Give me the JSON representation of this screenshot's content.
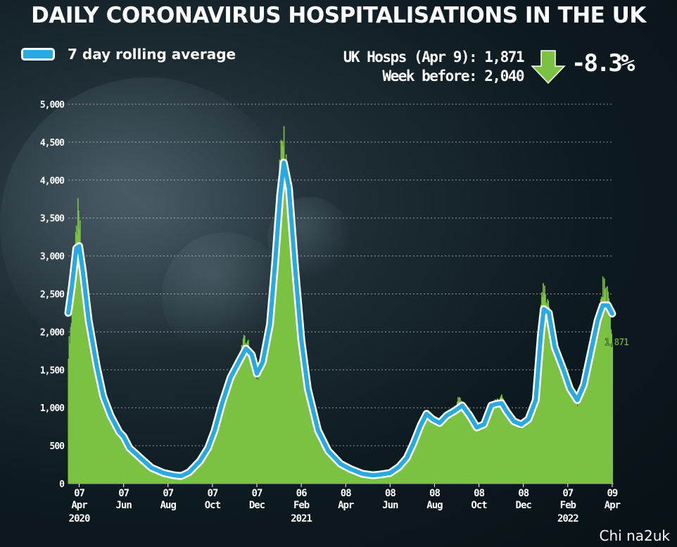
{
  "title": "DAILY CORONAVIRUS HOSPITALISATIONS IN THE UK",
  "legend": {
    "label": "7 day rolling average",
    "swatch_color": "#29a9e1"
  },
  "stats": {
    "latest": "UK Hosps (Apr 9): 1,871",
    "previous": "Week before: 2,040",
    "change": "-8.3%",
    "arrow_icon": "down-arrow-icon",
    "arrow_color": "#7cc242"
  },
  "watermark": "Chi na2uk",
  "chart_data": {
    "type": "bar",
    "title": "DAILY CORONAVIRUS HOSPITALISATIONS IN THE UK",
    "bar_color": "#7cc242",
    "line_color": "#29a9e1",
    "ylim": [
      0,
      5000
    ],
    "yticks": [
      "0",
      "500",
      "1,000",
      "1,500",
      "2,000",
      "2,500",
      "3,000",
      "3,500",
      "4,000",
      "4,500",
      "5,000"
    ],
    "ytick_values": [
      0,
      500,
      1000,
      1500,
      2000,
      2500,
      3000,
      3500,
      4000,
      4500,
      5000
    ],
    "xlim": [
      "2020-03-23",
      "2022-04-11"
    ],
    "xticks": [
      {
        "date": "2020-04-07",
        "day": "07",
        "month": "Apr",
        "year": "2020"
      },
      {
        "date": "2020-06-07",
        "day": "07",
        "month": "Jun",
        "year": ""
      },
      {
        "date": "2020-08-07",
        "day": "07",
        "month": "Aug",
        "year": ""
      },
      {
        "date": "2020-10-07",
        "day": "07",
        "month": "Oct",
        "year": ""
      },
      {
        "date": "2020-12-07",
        "day": "07",
        "month": "Dec",
        "year": ""
      },
      {
        "date": "2021-02-06",
        "day": "06",
        "month": "Feb",
        "year": "2021"
      },
      {
        "date": "2021-04-08",
        "day": "08",
        "month": "Apr",
        "year": ""
      },
      {
        "date": "2021-06-08",
        "day": "08",
        "month": "Jun",
        "year": ""
      },
      {
        "date": "2021-08-08",
        "day": "08",
        "month": "Aug",
        "year": ""
      },
      {
        "date": "2021-10-08",
        "day": "08",
        "month": "Oct",
        "year": ""
      },
      {
        "date": "2021-12-08",
        "day": "08",
        "month": "Dec",
        "year": ""
      },
      {
        "date": "2022-02-07",
        "day": "07",
        "month": "Feb",
        "year": "2022"
      },
      {
        "date": "2022-04-09",
        "day": "09",
        "month": "Apr",
        "year": ""
      }
    ],
    "series": [
      {
        "name": "7 day rolling average",
        "points": [
          [
            "2020-03-23",
            2250
          ],
          [
            "2020-03-28",
            2600
          ],
          [
            "2020-04-03",
            3100
          ],
          [
            "2020-04-07",
            3130
          ],
          [
            "2020-04-12",
            2800
          ],
          [
            "2020-04-20",
            2150
          ],
          [
            "2020-05-01",
            1550
          ],
          [
            "2020-05-10",
            1150
          ],
          [
            "2020-05-20",
            900
          ],
          [
            "2020-06-01",
            680
          ],
          [
            "2020-06-07",
            620
          ],
          [
            "2020-06-15",
            470
          ],
          [
            "2020-07-01",
            330
          ],
          [
            "2020-07-15",
            210
          ],
          [
            "2020-08-01",
            140
          ],
          [
            "2020-08-15",
            110
          ],
          [
            "2020-08-25",
            100
          ],
          [
            "2020-09-05",
            150
          ],
          [
            "2020-09-20",
            300
          ],
          [
            "2020-10-01",
            470
          ],
          [
            "2020-10-10",
            700
          ],
          [
            "2020-10-20",
            1050
          ],
          [
            "2020-11-01",
            1400
          ],
          [
            "2020-11-12",
            1600
          ],
          [
            "2020-11-22",
            1780
          ],
          [
            "2020-11-30",
            1700
          ],
          [
            "2020-12-07",
            1450
          ],
          [
            "2020-12-15",
            1600
          ],
          [
            "2020-12-25",
            2100
          ],
          [
            "2021-01-01",
            2900
          ],
          [
            "2021-01-08",
            3800
          ],
          [
            "2021-01-13",
            4230
          ],
          [
            "2021-01-20",
            3900
          ],
          [
            "2021-01-28",
            2900
          ],
          [
            "2021-02-06",
            1900
          ],
          [
            "2021-02-15",
            1250
          ],
          [
            "2021-03-01",
            700
          ],
          [
            "2021-03-15",
            430
          ],
          [
            "2021-04-01",
            260
          ],
          [
            "2021-04-15",
            190
          ],
          [
            "2021-05-01",
            130
          ],
          [
            "2021-05-15",
            110
          ],
          [
            "2021-05-25",
            120
          ],
          [
            "2021-06-08",
            140
          ],
          [
            "2021-06-20",
            220
          ],
          [
            "2021-07-01",
            340
          ],
          [
            "2021-07-10",
            530
          ],
          [
            "2021-07-20",
            770
          ],
          [
            "2021-07-28",
            920
          ],
          [
            "2021-08-05",
            850
          ],
          [
            "2021-08-15",
            800
          ],
          [
            "2021-08-25",
            900
          ],
          [
            "2021-09-05",
            960
          ],
          [
            "2021-09-15",
            1030
          ],
          [
            "2021-09-25",
            900
          ],
          [
            "2021-10-05",
            740
          ],
          [
            "2021-10-15",
            780
          ],
          [
            "2021-10-25",
            1030
          ],
          [
            "2021-11-01",
            1050
          ],
          [
            "2021-11-08",
            1060
          ],
          [
            "2021-11-15",
            950
          ],
          [
            "2021-11-25",
            820
          ],
          [
            "2021-12-05",
            780
          ],
          [
            "2021-12-15",
            850
          ],
          [
            "2021-12-25",
            1100
          ],
          [
            "2022-01-01",
            1950
          ],
          [
            "2022-01-05",
            2300
          ],
          [
            "2022-01-12",
            2250
          ],
          [
            "2022-01-20",
            1800
          ],
          [
            "2022-02-01",
            1500
          ],
          [
            "2022-02-10",
            1250
          ],
          [
            "2022-02-20",
            1100
          ],
          [
            "2022-03-01",
            1300
          ],
          [
            "2022-03-10",
            1700
          ],
          [
            "2022-03-20",
            2150
          ],
          [
            "2022-03-27",
            2350
          ],
          [
            "2022-04-03",
            2350
          ],
          [
            "2022-04-09",
            2240
          ]
        ]
      },
      {
        "name": "Daily hospitalisations",
        "note_label": "1,871",
        "points": [
          [
            "2020-03-23",
            1750
          ],
          [
            "2020-03-28",
            2250
          ],
          [
            "2020-04-01",
            3000
          ],
          [
            "2020-04-05",
            3550
          ],
          [
            "2020-04-08",
            3300
          ],
          [
            "2020-04-12",
            2700
          ],
          [
            "2020-04-20",
            2150
          ],
          [
            "2020-05-01",
            1500
          ],
          [
            "2020-05-10",
            1100
          ],
          [
            "2020-05-20",
            870
          ],
          [
            "2020-06-01",
            660
          ],
          [
            "2020-06-07",
            600
          ],
          [
            "2020-06-15",
            450
          ],
          [
            "2020-07-01",
            310
          ],
          [
            "2020-07-15",
            200
          ],
          [
            "2020-08-01",
            130
          ],
          [
            "2020-08-15",
            105
          ],
          [
            "2020-08-25",
            95
          ],
          [
            "2020-09-05",
            140
          ],
          [
            "2020-09-20",
            290
          ],
          [
            "2020-10-01",
            450
          ],
          [
            "2020-10-10",
            680
          ],
          [
            "2020-10-20",
            1020
          ],
          [
            "2020-11-01",
            1380
          ],
          [
            "2020-11-12",
            1650
          ],
          [
            "2020-11-20",
            1950
          ],
          [
            "2020-11-30",
            1650
          ],
          [
            "2020-12-07",
            1400
          ],
          [
            "2020-12-15",
            1580
          ],
          [
            "2020-12-25",
            2050
          ],
          [
            "2021-01-01",
            2900
          ],
          [
            "2021-01-06",
            4100
          ],
          [
            "2021-01-12",
            4550
          ],
          [
            "2021-01-18",
            3950
          ],
          [
            "2021-01-28",
            2850
          ],
          [
            "2021-02-06",
            1850
          ],
          [
            "2021-02-15",
            1200
          ],
          [
            "2021-03-01",
            680
          ],
          [
            "2021-03-15",
            410
          ],
          [
            "2021-04-01",
            250
          ],
          [
            "2021-04-15",
            180
          ],
          [
            "2021-05-01",
            125
          ],
          [
            "2021-05-15",
            105
          ],
          [
            "2021-05-25",
            115
          ],
          [
            "2021-06-08",
            135
          ],
          [
            "2021-06-20",
            215
          ],
          [
            "2021-07-01",
            330
          ],
          [
            "2021-07-10",
            520
          ],
          [
            "2021-07-20",
            760
          ],
          [
            "2021-07-28",
            950
          ],
          [
            "2021-08-05",
            830
          ],
          [
            "2021-08-15",
            790
          ],
          [
            "2021-08-25",
            890
          ],
          [
            "2021-09-05",
            980
          ],
          [
            "2021-09-12",
            1150
          ],
          [
            "2021-09-25",
            880
          ],
          [
            "2021-10-05",
            720
          ],
          [
            "2021-10-15",
            770
          ],
          [
            "2021-10-25",
            1080
          ],
          [
            "2021-11-01",
            1050
          ],
          [
            "2021-11-08",
            1120
          ],
          [
            "2021-11-15",
            930
          ],
          [
            "2021-11-25",
            800
          ],
          [
            "2021-12-05",
            760
          ],
          [
            "2021-12-15",
            870
          ],
          [
            "2021-12-25",
            1150
          ],
          [
            "2021-12-31",
            2200
          ],
          [
            "2022-01-03",
            2600
          ],
          [
            "2022-01-08",
            2400
          ],
          [
            "2022-01-15",
            2150
          ],
          [
            "2022-01-22",
            1750
          ],
          [
            "2022-02-01",
            1450
          ],
          [
            "2022-02-10",
            1200
          ],
          [
            "2022-02-20",
            1050
          ],
          [
            "2022-03-01",
            1280
          ],
          [
            "2022-03-10",
            1700
          ],
          [
            "2022-03-20",
            2150
          ],
          [
            "2022-03-27",
            2600
          ],
          [
            "2022-04-03",
            2500
          ],
          [
            "2022-04-09",
            1871
          ]
        ]
      }
    ],
    "grid": true,
    "legend": "top-left"
  }
}
